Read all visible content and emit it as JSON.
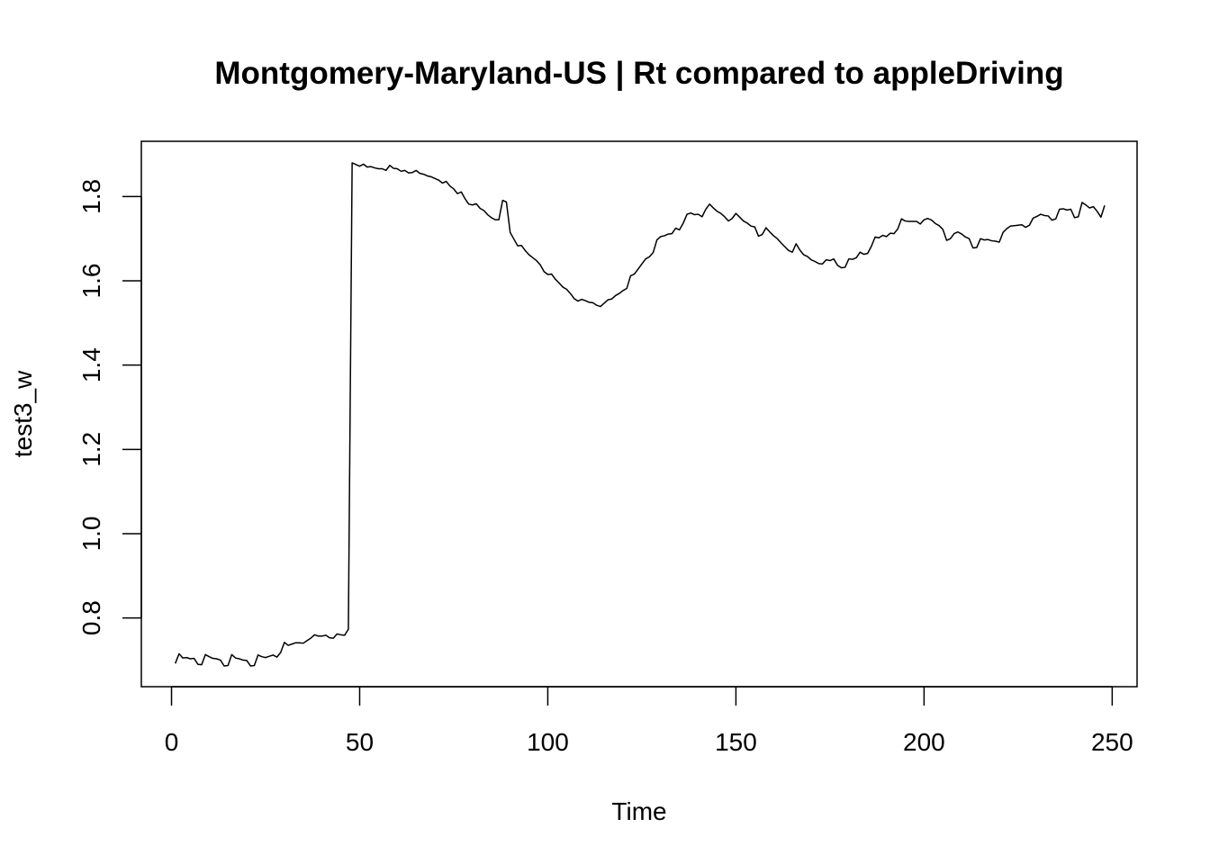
{
  "chart_data": {
    "type": "line",
    "title": "Montgomery-Maryland-US | Rt compared to appleDriving",
    "xlabel": "Time",
    "ylabel": "test3_w",
    "xlim": [
      1,
      248
    ],
    "ylim": [
      0.69,
      1.88
    ],
    "xticks": [
      0,
      50,
      100,
      150,
      200,
      250
    ],
    "xtick_labels": [
      "0",
      "50",
      "100",
      "150",
      "200",
      "250"
    ],
    "yticks": [
      0.8,
      1.0,
      1.2,
      1.4,
      1.6,
      1.8
    ],
    "ytick_labels": [
      "0.8",
      "1.0",
      "1.2",
      "1.4",
      "1.6",
      "1.8"
    ],
    "grid": false,
    "legend": "none",
    "color": "#000000",
    "series": [
      {
        "points": [
          [
            1,
            0.692
          ],
          [
            2,
            0.715
          ],
          [
            3,
            0.705
          ],
          [
            4,
            0.706
          ],
          [
            5,
            0.703
          ],
          [
            6,
            0.704
          ],
          [
            7,
            0.69
          ],
          [
            8,
            0.689
          ],
          [
            9,
            0.713
          ],
          [
            10,
            0.708
          ],
          [
            11,
            0.704
          ],
          [
            12,
            0.703
          ],
          [
            13,
            0.7
          ],
          [
            14,
            0.686
          ],
          [
            15,
            0.687
          ],
          [
            16,
            0.713
          ],
          [
            17,
            0.705
          ],
          [
            18,
            0.703
          ],
          [
            19,
            0.7
          ],
          [
            20,
            0.699
          ],
          [
            21,
            0.686
          ],
          [
            22,
            0.687
          ],
          [
            23,
            0.712
          ],
          [
            24,
            0.708
          ],
          [
            25,
            0.706
          ],
          [
            26,
            0.709
          ],
          [
            27,
            0.712
          ],
          [
            28,
            0.707
          ],
          [
            29,
            0.718
          ],
          [
            30,
            0.742
          ],
          [
            31,
            0.735
          ],
          [
            32,
            0.738
          ],
          [
            33,
            0.741
          ],
          [
            34,
            0.741
          ],
          [
            35,
            0.74
          ],
          [
            36,
            0.746
          ],
          [
            37,
            0.752
          ],
          [
            38,
            0.76
          ],
          [
            39,
            0.757
          ],
          [
            40,
            0.757
          ],
          [
            41,
            0.759
          ],
          [
            42,
            0.753
          ],
          [
            43,
            0.752
          ],
          [
            44,
            0.762
          ],
          [
            45,
            0.76
          ],
          [
            46,
            0.759
          ],
          [
            47,
            0.773
          ],
          [
            48,
            1.88
          ],
          [
            49,
            1.876
          ],
          [
            50,
            1.872
          ],
          [
            51,
            1.877
          ],
          [
            52,
            1.87
          ],
          [
            53,
            1.871
          ],
          [
            54,
            1.868
          ],
          [
            55,
            1.866
          ],
          [
            56,
            1.866
          ],
          [
            57,
            1.862
          ],
          [
            58,
            1.874
          ],
          [
            59,
            1.867
          ],
          [
            60,
            1.866
          ],
          [
            61,
            1.86
          ],
          [
            62,
            1.862
          ],
          [
            63,
            1.856
          ],
          [
            64,
            1.857
          ],
          [
            65,
            1.862
          ],
          [
            66,
            1.855
          ],
          [
            67,
            1.853
          ],
          [
            68,
            1.849
          ],
          [
            69,
            1.847
          ],
          [
            70,
            1.843
          ],
          [
            71,
            1.839
          ],
          [
            72,
            1.832
          ],
          [
            73,
            1.836
          ],
          [
            74,
            1.825
          ],
          [
            75,
            1.818
          ],
          [
            76,
            1.807
          ],
          [
            77,
            1.811
          ],
          [
            78,
            1.795
          ],
          [
            79,
            1.782
          ],
          [
            80,
            1.78
          ],
          [
            81,
            1.783
          ],
          [
            82,
            1.772
          ],
          [
            83,
            1.767
          ],
          [
            84,
            1.757
          ],
          [
            85,
            1.75
          ],
          [
            86,
            1.745
          ],
          [
            87,
            1.745
          ],
          [
            88,
            1.791
          ],
          [
            89,
            1.787
          ],
          [
            90,
            1.715
          ],
          [
            91,
            1.699
          ],
          [
            92,
            1.683
          ],
          [
            93,
            1.684
          ],
          [
            94,
            1.672
          ],
          [
            95,
            1.662
          ],
          [
            96,
            1.655
          ],
          [
            97,
            1.648
          ],
          [
            98,
            1.638
          ],
          [
            99,
            1.622
          ],
          [
            100,
            1.615
          ],
          [
            101,
            1.616
          ],
          [
            102,
            1.604
          ],
          [
            103,
            1.595
          ],
          [
            104,
            1.585
          ],
          [
            105,
            1.58
          ],
          [
            106,
            1.57
          ],
          [
            107,
            1.558
          ],
          [
            108,
            1.552
          ],
          [
            109,
            1.556
          ],
          [
            110,
            1.553
          ],
          [
            111,
            1.549
          ],
          [
            112,
            1.548
          ],
          [
            113,
            1.542
          ],
          [
            114,
            1.539
          ],
          [
            115,
            1.547
          ],
          [
            116,
            1.555
          ],
          [
            117,
            1.557
          ],
          [
            118,
            1.565
          ],
          [
            119,
            1.57
          ],
          [
            120,
            1.577
          ],
          [
            121,
            1.582
          ],
          [
            122,
            1.612
          ],
          [
            123,
            1.616
          ],
          [
            124,
            1.628
          ],
          [
            125,
            1.64
          ],
          [
            126,
            1.652
          ],
          [
            127,
            1.657
          ],
          [
            128,
            1.667
          ],
          [
            129,
            1.697
          ],
          [
            130,
            1.705
          ],
          [
            131,
            1.707
          ],
          [
            132,
            1.711
          ],
          [
            133,
            1.712
          ],
          [
            134,
            1.725
          ],
          [
            135,
            1.721
          ],
          [
            136,
            1.737
          ],
          [
            137,
            1.758
          ],
          [
            138,
            1.761
          ],
          [
            139,
            1.757
          ],
          [
            140,
            1.758
          ],
          [
            141,
            1.752
          ],
          [
            142,
            1.77
          ],
          [
            143,
            1.782
          ],
          [
            144,
            1.773
          ],
          [
            145,
            1.765
          ],
          [
            146,
            1.76
          ],
          [
            147,
            1.752
          ],
          [
            148,
            1.742
          ],
          [
            149,
            1.748
          ],
          [
            150,
            1.76
          ],
          [
            151,
            1.751
          ],
          [
            152,
            1.742
          ],
          [
            153,
            1.737
          ],
          [
            154,
            1.73
          ],
          [
            155,
            1.728
          ],
          [
            156,
            1.706
          ],
          [
            157,
            1.71
          ],
          [
            158,
            1.726
          ],
          [
            159,
            1.716
          ],
          [
            160,
            1.707
          ],
          [
            161,
            1.7
          ],
          [
            162,
            1.69
          ],
          [
            163,
            1.681
          ],
          [
            164,
            1.672
          ],
          [
            165,
            1.668
          ],
          [
            166,
            1.688
          ],
          [
            167,
            1.673
          ],
          [
            168,
            1.662
          ],
          [
            169,
            1.658
          ],
          [
            170,
            1.65
          ],
          [
            171,
            1.646
          ],
          [
            172,
            1.641
          ],
          [
            173,
            1.64
          ],
          [
            174,
            1.65
          ],
          [
            175,
            1.648
          ],
          [
            176,
            1.652
          ],
          [
            177,
            1.637
          ],
          [
            178,
            1.631
          ],
          [
            179,
            1.632
          ],
          [
            180,
            1.652
          ],
          [
            181,
            1.651
          ],
          [
            182,
            1.655
          ],
          [
            183,
            1.668
          ],
          [
            184,
            1.663
          ],
          [
            185,
            1.665
          ],
          [
            186,
            1.682
          ],
          [
            187,
            1.704
          ],
          [
            188,
            1.702
          ],
          [
            189,
            1.708
          ],
          [
            190,
            1.705
          ],
          [
            191,
            1.713
          ],
          [
            192,
            1.712
          ],
          [
            193,
            1.723
          ],
          [
            194,
            1.747
          ],
          [
            195,
            1.742
          ],
          [
            196,
            1.741
          ],
          [
            197,
            1.741
          ],
          [
            198,
            1.741
          ],
          [
            199,
            1.735
          ],
          [
            200,
            1.745
          ],
          [
            201,
            1.748
          ],
          [
            202,
            1.744
          ],
          [
            203,
            1.736
          ],
          [
            204,
            1.731
          ],
          [
            205,
            1.722
          ],
          [
            206,
            1.696
          ],
          [
            207,
            1.7
          ],
          [
            208,
            1.712
          ],
          [
            209,
            1.716
          ],
          [
            210,
            1.711
          ],
          [
            211,
            1.704
          ],
          [
            212,
            1.7
          ],
          [
            213,
            1.678
          ],
          [
            214,
            1.679
          ],
          [
            215,
            1.7
          ],
          [
            216,
            1.697
          ],
          [
            217,
            1.698
          ],
          [
            218,
            1.695
          ],
          [
            219,
            1.694
          ],
          [
            220,
            1.692
          ],
          [
            221,
            1.715
          ],
          [
            222,
            1.724
          ],
          [
            223,
            1.73
          ],
          [
            224,
            1.731
          ],
          [
            225,
            1.732
          ],
          [
            226,
            1.733
          ],
          [
            227,
            1.727
          ],
          [
            228,
            1.732
          ],
          [
            229,
            1.749
          ],
          [
            230,
            1.753
          ],
          [
            231,
            1.758
          ],
          [
            232,
            1.755
          ],
          [
            233,
            1.754
          ],
          [
            234,
            1.744
          ],
          [
            235,
            1.747
          ],
          [
            236,
            1.77
          ],
          [
            237,
            1.771
          ],
          [
            238,
            1.768
          ],
          [
            239,
            1.77
          ],
          [
            240,
            1.75
          ],
          [
            241,
            1.752
          ],
          [
            242,
            1.786
          ],
          [
            243,
            1.78
          ],
          [
            244,
            1.773
          ],
          [
            245,
            1.776
          ],
          [
            246,
            1.765
          ],
          [
            247,
            1.751
          ],
          [
            248,
            1.779
          ]
        ]
      }
    ]
  }
}
